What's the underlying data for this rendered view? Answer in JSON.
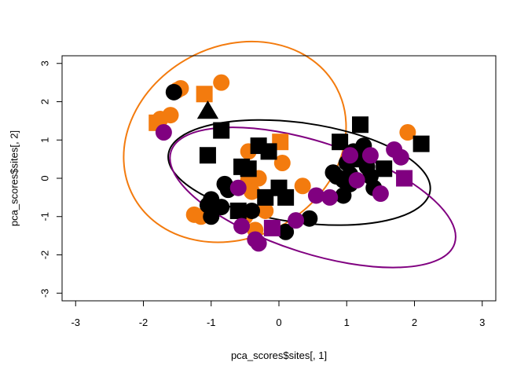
{
  "chart_data": {
    "type": "scatter",
    "xlabel": "pca_scores$sites[, 1]",
    "ylabel": "pca_scores$sites[, 2]",
    "xlim": [
      -3.2,
      3.2
    ],
    "ylim": [
      -3.2,
      3.2
    ],
    "x_ticks": [
      "-3",
      "-2",
      "-1",
      "0",
      "1",
      "2",
      "3"
    ],
    "y_ticks": [
      "-3",
      "-2",
      "-1",
      "0",
      "1",
      "2",
      "3"
    ],
    "grid": false,
    "legend": "none",
    "colors": {
      "orange": "#F37B0E",
      "black": "#000000",
      "purple": "#800080"
    },
    "series": [
      {
        "color": "#F37B0E",
        "points": [
          {
            "x": -1.45,
            "y": 2.35,
            "shape": "circle"
          },
          {
            "x": -1.5,
            "y": 2.3,
            "shape": "circle"
          },
          {
            "x": -0.85,
            "y": 2.5,
            "shape": "circle"
          },
          {
            "x": -1.1,
            "y": 2.2,
            "shape": "square"
          },
          {
            "x": -1.8,
            "y": 1.45,
            "shape": "square"
          },
          {
            "x": -1.6,
            "y": 1.65,
            "shape": "circle"
          },
          {
            "x": -1.75,
            "y": 1.55,
            "shape": "circle"
          },
          {
            "x": 0.02,
            "y": 0.95,
            "shape": "square"
          },
          {
            "x": -0.45,
            "y": 0.7,
            "shape": "circle"
          },
          {
            "x": 0.05,
            "y": 0.4,
            "shape": "circle"
          },
          {
            "x": -0.3,
            "y": 0.0,
            "shape": "circle"
          },
          {
            "x": -0.45,
            "y": -0.05,
            "shape": "circle"
          },
          {
            "x": 0.35,
            "y": -0.2,
            "shape": "circle"
          },
          {
            "x": -0.4,
            "y": -0.35,
            "shape": "circle"
          },
          {
            "x": -1.25,
            "y": -0.95,
            "shape": "circle"
          },
          {
            "x": -1.15,
            "y": -1.0,
            "shape": "circle"
          },
          {
            "x": -0.5,
            "y": -1.0,
            "shape": "circle"
          },
          {
            "x": -0.2,
            "y": -0.85,
            "shape": "circle"
          },
          {
            "x": -0.35,
            "y": -1.35,
            "shape": "circle"
          },
          {
            "x": 1.9,
            "y": 1.2,
            "shape": "circle"
          }
        ]
      },
      {
        "color": "#000000",
        "points": [
          {
            "x": -1.55,
            "y": 2.25,
            "shape": "circle"
          },
          {
            "x": -1.05,
            "y": 1.75,
            "shape": "triangle"
          },
          {
            "x": -0.85,
            "y": 1.25,
            "shape": "square"
          },
          {
            "x": -1.05,
            "y": 0.6,
            "shape": "square"
          },
          {
            "x": -0.55,
            "y": 0.3,
            "shape": "square"
          },
          {
            "x": -0.3,
            "y": 0.85,
            "shape": "square"
          },
          {
            "x": -0.15,
            "y": 0.7,
            "shape": "square"
          },
          {
            "x": -0.45,
            "y": 0.25,
            "shape": "square"
          },
          {
            "x": -0.8,
            "y": -0.15,
            "shape": "circle"
          },
          {
            "x": -0.75,
            "y": -0.3,
            "shape": "circle"
          },
          {
            "x": -1.0,
            "y": -0.55,
            "shape": "circle"
          },
          {
            "x": -1.05,
            "y": -0.7,
            "shape": "circle"
          },
          {
            "x": -0.85,
            "y": -0.75,
            "shape": "circle"
          },
          {
            "x": -0.6,
            "y": -0.85,
            "shape": "square"
          },
          {
            "x": -0.4,
            "y": -0.85,
            "shape": "circle"
          },
          {
            "x": -0.2,
            "y": -0.5,
            "shape": "square"
          },
          {
            "x": 0.0,
            "y": -0.25,
            "shape": "square"
          },
          {
            "x": 0.1,
            "y": -0.5,
            "shape": "square"
          },
          {
            "x": -1.0,
            "y": -1.0,
            "shape": "circle"
          },
          {
            "x": 0.1,
            "y": -1.4,
            "shape": "circle"
          },
          {
            "x": 0.45,
            "y": -1.05,
            "shape": "circle"
          },
          {
            "x": 0.8,
            "y": 0.15,
            "shape": "circle"
          },
          {
            "x": 0.85,
            "y": 0.05,
            "shape": "circle"
          },
          {
            "x": 0.9,
            "y": 0.95,
            "shape": "square"
          },
          {
            "x": 0.95,
            "y": -0.05,
            "shape": "circle"
          },
          {
            "x": 1.0,
            "y": 0.4,
            "shape": "circle"
          },
          {
            "x": 1.05,
            "y": -0.15,
            "shape": "circle"
          },
          {
            "x": 1.1,
            "y": 0.7,
            "shape": "circle"
          },
          {
            "x": 1.2,
            "y": 0.5,
            "shape": "square"
          },
          {
            "x": 1.25,
            "y": 0.85,
            "shape": "circle"
          },
          {
            "x": 1.3,
            "y": 0.3,
            "shape": "circle"
          },
          {
            "x": 1.35,
            "y": 0.05,
            "shape": "circle"
          },
          {
            "x": 1.2,
            "y": 1.4,
            "shape": "square"
          },
          {
            "x": 0.95,
            "y": -0.45,
            "shape": "circle"
          },
          {
            "x": 1.4,
            "y": -0.25,
            "shape": "circle"
          },
          {
            "x": 1.55,
            "y": 0.25,
            "shape": "square"
          },
          {
            "x": 2.1,
            "y": 0.9,
            "shape": "square"
          },
          {
            "x": 1.05,
            "y": 0.1,
            "shape": "circle"
          }
        ]
      },
      {
        "color": "#800080",
        "points": [
          {
            "x": -1.7,
            "y": 1.2,
            "shape": "circle"
          },
          {
            "x": -0.6,
            "y": -0.25,
            "shape": "circle"
          },
          {
            "x": -0.55,
            "y": -1.25,
            "shape": "circle"
          },
          {
            "x": -0.35,
            "y": -1.6,
            "shape": "circle"
          },
          {
            "x": -0.3,
            "y": -1.7,
            "shape": "circle"
          },
          {
            "x": -0.1,
            "y": -1.3,
            "shape": "square"
          },
          {
            "x": 0.25,
            "y": -1.1,
            "shape": "circle"
          },
          {
            "x": 0.55,
            "y": -0.45,
            "shape": "circle"
          },
          {
            "x": 0.75,
            "y": -0.5,
            "shape": "circle"
          },
          {
            "x": 1.15,
            "y": -0.05,
            "shape": "circle"
          },
          {
            "x": 1.35,
            "y": 0.6,
            "shape": "circle"
          },
          {
            "x": 1.5,
            "y": -0.4,
            "shape": "circle"
          },
          {
            "x": 1.7,
            "y": 0.75,
            "shape": "circle"
          },
          {
            "x": 1.8,
            "y": 0.55,
            "shape": "circle"
          },
          {
            "x": 1.85,
            "y": 0.0,
            "shape": "square"
          },
          {
            "x": 1.05,
            "y": 0.6,
            "shape": "circle"
          }
        ]
      }
    ],
    "ellipses": [
      {
        "color": "#F37B0E",
        "cx": -0.65,
        "cy": 0.95,
        "rx": 1.7,
        "ry": 2.5,
        "angle_deg": -28
      },
      {
        "color": "#000000",
        "cx": 0.3,
        "cy": 0.15,
        "rx": 1.95,
        "ry": 1.3,
        "angle_deg": 8
      },
      {
        "color": "#800080",
        "cx": 0.5,
        "cy": -0.5,
        "rx": 2.2,
        "ry": 1.45,
        "angle_deg": 18
      }
    ]
  }
}
